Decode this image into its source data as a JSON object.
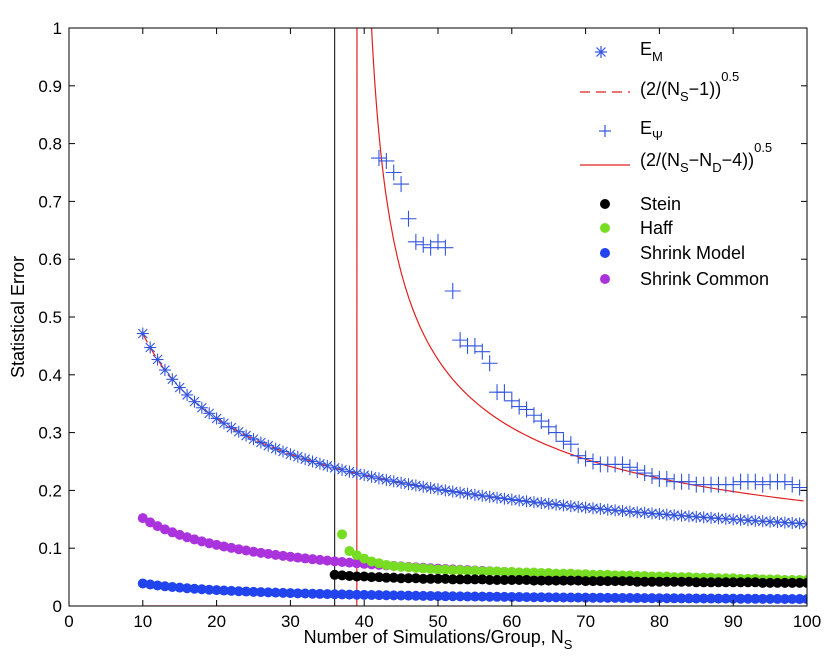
{
  "chart_data": {
    "type": "scatter",
    "title": "",
    "xlabel": "Number of Simulations/Group, N",
    "xlabel_sub": "S",
    "ylabel": "Statistical Error",
    "xlim": [
      0,
      100
    ],
    "ylim": [
      0,
      1
    ],
    "xticks": [
      "0",
      "10",
      "20",
      "30",
      "40",
      "50",
      "60",
      "70",
      "80",
      "90",
      "100"
    ],
    "yticks": [
      "0",
      "0.1",
      "0.2",
      "0.3",
      "0.4",
      "0.5",
      "0.6",
      "0.7",
      "0.8",
      "0.9",
      "1"
    ],
    "vline_x": 36,
    "legend_position": "top-right",
    "legend": {
      "e_m": {
        "base": "E",
        "sub": "M"
      },
      "dashed": {
        "p1": "(2/(N",
        "sub1": "S",
        "p2": "−1))",
        "sup": "0.5"
      },
      "e_psi": {
        "base": "E",
        "sub": "Ψ"
      },
      "solid": {
        "p1": "(2/(N",
        "sub1": "S",
        "p2": "−N",
        "sub2": "D",
        "p3": "−4))",
        "sup": "0.5"
      },
      "stein": "Stein",
      "haff": "Haff",
      "shrink_model": "Shrink Model",
      "shrink_common": "Shrink Common"
    },
    "series": [
      {
        "name": "E_M",
        "marker": "asterisk",
        "color": "#3355dd",
        "x_start": 10,
        "x_end": 100,
        "formula": "sqrt(2/(N_S-1))"
      },
      {
        "name": "(2/(N_S-1))^0.5",
        "line": "dashed",
        "color": "#e02020",
        "x_start": 10,
        "x_end": 100
      },
      {
        "name": "E_Psi",
        "marker": "plus",
        "color": "#3355dd",
        "x": [
          42,
          43,
          44,
          45,
          46,
          47,
          48,
          49,
          50,
          51,
          52,
          53,
          54,
          55,
          56,
          57,
          58,
          59,
          60,
          61,
          62,
          63,
          64,
          65,
          66,
          67,
          68,
          69,
          70,
          71,
          72,
          73,
          74,
          75,
          76,
          77,
          78,
          79,
          80,
          81,
          82,
          83,
          84,
          85,
          86,
          87,
          88,
          89,
          90,
          91,
          92,
          93,
          94,
          95,
          96,
          97,
          98,
          99,
          100
        ],
        "y": [
          0.775,
          0.77,
          0.75,
          0.73,
          0.67,
          0.63,
          0.625,
          0.62,
          0.63,
          0.62,
          0.545,
          0.46,
          0.45,
          0.45,
          0.44,
          0.42,
          0.37,
          0.37,
          0.355,
          0.345,
          0.34,
          0.33,
          0.32,
          0.31,
          0.3,
          0.285,
          0.28,
          0.26,
          0.255,
          0.25,
          0.245,
          0.245,
          0.245,
          0.245,
          0.24,
          0.235,
          0.23,
          0.225,
          0.22,
          0.22,
          0.215,
          0.215,
          0.215,
          0.21,
          0.21,
          0.21,
          0.21,
          0.21,
          0.21,
          0.215,
          0.215,
          0.215,
          0.21,
          0.215,
          0.215,
          0.215,
          0.21,
          0.205,
          0.2
        ]
      },
      {
        "name": "(2/(N_S-N_D-4))^0.5",
        "line": "solid",
        "color": "#e02020",
        "N_D": 35,
        "x_start": 10,
        "x_end": 100,
        "note": "zero for N_S <= 39"
      },
      {
        "name": "Stein",
        "marker": "dot",
        "color": "#000000",
        "x": [
          36,
          37,
          38,
          39,
          40,
          41,
          42,
          43,
          44,
          45,
          46,
          47,
          48,
          49,
          50,
          51,
          52,
          53,
          54,
          55,
          56,
          57,
          58,
          59,
          60,
          61,
          62,
          63,
          64,
          65,
          66,
          67,
          68,
          69,
          70,
          71,
          72,
          73,
          74,
          75,
          76,
          77,
          78,
          79,
          80,
          81,
          82,
          83,
          84,
          85,
          86,
          87,
          88,
          89,
          90,
          91,
          92,
          93,
          94,
          95,
          96,
          97,
          98,
          99,
          100
        ],
        "y": [
          0.054,
          0.053,
          0.052,
          0.051,
          0.051,
          0.05,
          0.05,
          0.049,
          0.049,
          0.048,
          0.048,
          0.048,
          0.047,
          0.047,
          0.047,
          0.047,
          0.046,
          0.046,
          0.046,
          0.046,
          0.046,
          0.045,
          0.045,
          0.045,
          0.045,
          0.045,
          0.045,
          0.044,
          0.044,
          0.044,
          0.044,
          0.044,
          0.044,
          0.044,
          0.043,
          0.043,
          0.043,
          0.043,
          0.043,
          0.043,
          0.043,
          0.042,
          0.042,
          0.042,
          0.042,
          0.042,
          0.042,
          0.042,
          0.042,
          0.041,
          0.041,
          0.041,
          0.041,
          0.041,
          0.041,
          0.041,
          0.041,
          0.041,
          0.04,
          0.04,
          0.04,
          0.04,
          0.04,
          0.04,
          0.04
        ]
      },
      {
        "name": "Haff",
        "marker": "dot",
        "color": "#77dd22",
        "x": [
          37,
          38,
          39,
          40,
          41,
          42,
          43,
          44,
          45,
          46,
          47,
          48,
          49,
          50,
          51,
          52,
          53,
          54,
          55,
          56,
          57,
          58,
          59,
          60,
          61,
          62,
          63,
          64,
          65,
          66,
          67,
          68,
          69,
          70,
          71,
          72,
          73,
          74,
          75,
          76,
          77,
          78,
          79,
          80,
          81,
          82,
          83,
          84,
          85,
          86,
          87,
          88,
          89,
          90,
          91,
          92,
          93,
          94,
          95,
          96,
          97,
          98,
          99,
          100
        ],
        "y": [
          0.124,
          0.095,
          0.088,
          0.082,
          0.077,
          0.074,
          0.071,
          0.069,
          0.068,
          0.067,
          0.066,
          0.065,
          0.064,
          0.063,
          0.063,
          0.062,
          0.062,
          0.061,
          0.061,
          0.06,
          0.06,
          0.06,
          0.059,
          0.059,
          0.058,
          0.058,
          0.058,
          0.057,
          0.057,
          0.056,
          0.056,
          0.056,
          0.055,
          0.055,
          0.054,
          0.054,
          0.054,
          0.053,
          0.053,
          0.053,
          0.052,
          0.052,
          0.051,
          0.051,
          0.051,
          0.05,
          0.05,
          0.05,
          0.049,
          0.049,
          0.049,
          0.048,
          0.048,
          0.048,
          0.047,
          0.047,
          0.047,
          0.046,
          0.046,
          0.046,
          0.045,
          0.045,
          0.045,
          0.045
        ]
      },
      {
        "name": "Shrink Model",
        "marker": "dot",
        "color": "#2244ee",
        "x_start": 10,
        "x_end": 100,
        "y_start": 0.039,
        "y_end": 0.012
      },
      {
        "name": "Shrink Common",
        "marker": "dot",
        "color": "#aa33dd",
        "x_start": 10,
        "x_end": 100,
        "y_start": 0.152,
        "y_end": 0.044
      }
    ]
  }
}
